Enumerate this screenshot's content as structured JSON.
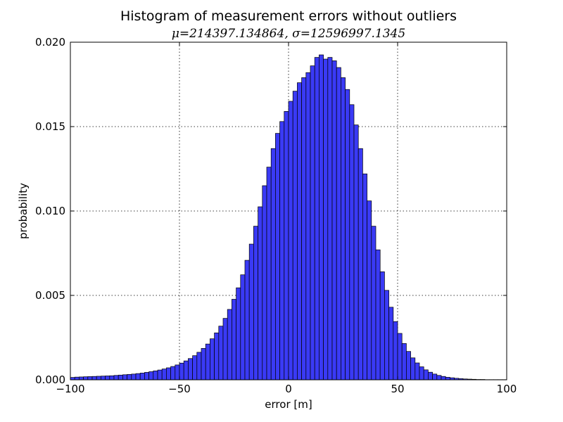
{
  "chart_data": {
    "type": "bar",
    "title": "Histogram of measurement errors without outliers",
    "subtitle": "μ=214397.134864, σ=12596997.1345",
    "xlabel": "error [m]",
    "ylabel": "probability",
    "xlim": [
      -100,
      100
    ],
    "ylim": [
      0,
      0.02
    ],
    "xticks": [
      -100,
      -50,
      0,
      50,
      100
    ],
    "xtick_labels": [
      "−100",
      "−50",
      "0",
      "50",
      "100"
    ],
    "yticks": [
      0.0,
      0.005,
      0.01,
      0.015,
      0.02
    ],
    "ytick_labels": [
      "0.000",
      "0.005",
      "0.010",
      "0.015",
      "0.020"
    ],
    "grid": true,
    "bar_color": "#3a3af5",
    "bin_edges_start": -100,
    "bin_width": 2,
    "values": [
      0.00014,
      0.00016,
      0.00017,
      0.00018,
      0.00019,
      0.0002,
      0.00021,
      0.00022,
      0.00023,
      0.00024,
      0.00026,
      0.00028,
      0.0003,
      0.00032,
      0.00034,
      0.00037,
      0.0004,
      0.00044,
      0.00048,
      0.00053,
      0.00058,
      0.00064,
      0.00071,
      0.00079,
      0.00088,
      0.00099,
      0.00112,
      0.00126,
      0.00143,
      0.00163,
      0.00186,
      0.00212,
      0.00243,
      0.00278,
      0.00318,
      0.00364,
      0.00417,
      0.00477,
      0.00545,
      0.00622,
      0.00708,
      0.00804,
      0.0091,
      0.01025,
      0.0115,
      0.0126,
      0.0137,
      0.0146,
      0.0153,
      0.0159,
      0.0165,
      0.0171,
      0.0176,
      0.0179,
      0.0182,
      0.0186,
      0.0191,
      0.01925,
      0.019,
      0.0191,
      0.0189,
      0.0185,
      0.0179,
      0.0172,
      0.0163,
      0.0151,
      0.0137,
      0.0122,
      0.0106,
      0.0091,
      0.0077,
      0.0064,
      0.0053,
      0.0043,
      0.00345,
      0.00275,
      0.00215,
      0.00168,
      0.0013,
      0.001,
      0.00077,
      0.00059,
      0.00045,
      0.00034,
      0.00026,
      0.0002,
      0.00015,
      0.00012,
      9e-05,
      7e-05,
      5e-05,
      4e-05,
      3e-05,
      2e-05,
      2e-05,
      1e-05,
      1e-05,
      1e-05,
      1e-05,
      1e-05
    ]
  }
}
